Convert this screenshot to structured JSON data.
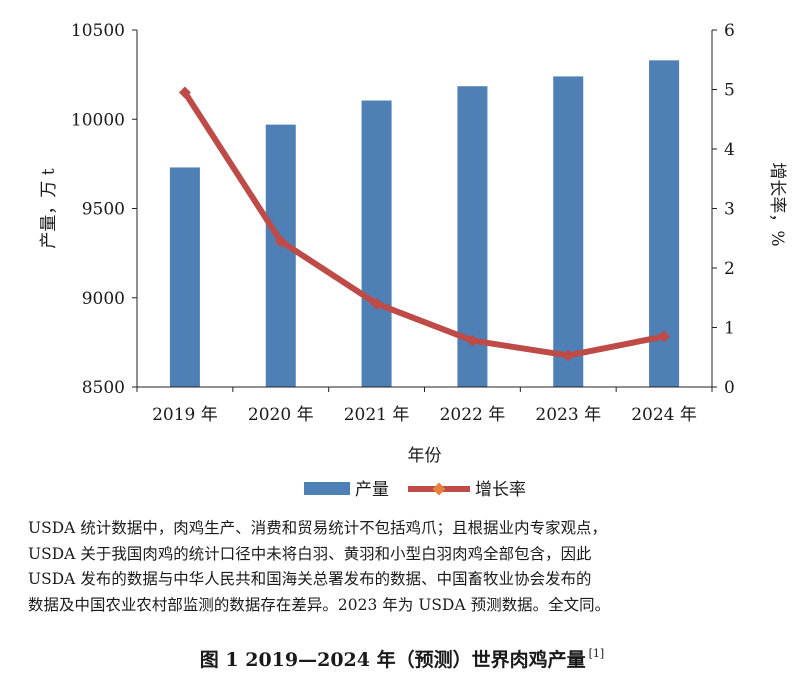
{
  "chart_data": {
    "type": "bar",
    "categories": [
      "2019 年",
      "2020 年",
      "2021 年",
      "2022 年",
      "2023 年",
      "2024 年"
    ],
    "series": [
      {
        "name": "产量",
        "type": "bar",
        "axis": "left",
        "color": "#4e7fb5",
        "values": [
          9730,
          9970,
          10105,
          10185,
          10240,
          10330
        ]
      },
      {
        "name": "增长率",
        "type": "line",
        "axis": "right",
        "color": "#be4b48",
        "marker_color": "#e8803a",
        "values": [
          4.95,
          2.45,
          1.4,
          0.78,
          0.53,
          0.85
        ]
      }
    ],
    "ylabel": "产量，万 t",
    "y2label": "增长率，%",
    "xlabel": "年份",
    "ylim": [
      8500,
      10500
    ],
    "yticks": [
      "8500",
      "9000",
      "9500",
      "10000",
      "10500"
    ],
    "y2lim": [
      0,
      6
    ],
    "y2ticks": [
      "0",
      "1",
      "2",
      "3",
      "4",
      "5",
      "6"
    ],
    "legend_position": "bottom",
    "grid": false
  },
  "notes": [
    "USDA 统计数据中，肉鸡生产、消费和贸易统计不包括鸡爪；且根据业内专家观点，",
    "USDA 关于我国肉鸡的统计口径中未将白羽、黄羽和小型白羽肉鸡全部包含，因此",
    "USDA 发布的数据与中华人民共和国海关总署发布的数据、中国畜牧业协会发布的",
    "数据及中国农业农村部监测的数据存在差异。2023 年为 USDA 预测数据。全文同。"
  ],
  "caption": {
    "text": "图 1  2019—2024 年（预测）世界肉鸡产量",
    "ref": "[1]"
  }
}
